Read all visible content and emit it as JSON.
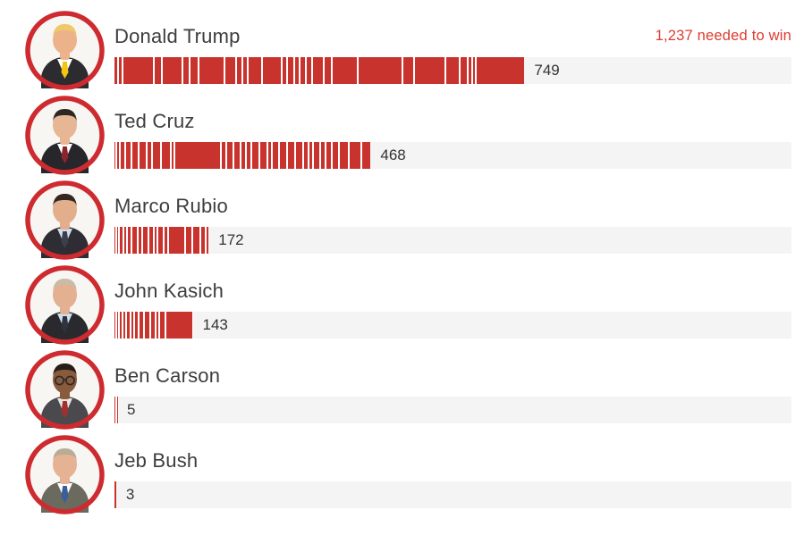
{
  "header": {
    "needed_to_win": "1,237 needed to win"
  },
  "colors": {
    "bar_red": "#c9332d",
    "ring_red": "#ce2b30",
    "needed_red": "#de3b30",
    "track_gray": "#f4f4f4",
    "name_gray": "#3d3d3d",
    "value_gray": "#333333"
  },
  "candidates": [
    {
      "name": "Donald Trump",
      "value": 749,
      "value_label": "749",
      "segments": [
        5,
        7,
        60,
        13,
        40,
        11,
        15,
        50,
        20,
        10,
        8,
        25,
        38,
        7,
        11,
        7,
        10,
        10,
        20,
        13,
        50,
        90,
        20,
        61,
        26,
        13,
        5,
        5,
        99
      ],
      "avatar": {
        "hair": "#f0c869",
        "skin": "#ecb28a",
        "suit": "#2b2b30",
        "shirt": "#ffffff",
        "tie": "#f2c413",
        "glasses": false
      }
    },
    {
      "name": "Ted Cruz",
      "value": 468,
      "value_label": "468",
      "segments": [
        3,
        4,
        8,
        10,
        12,
        15,
        9,
        17,
        18,
        4,
        104,
        8,
        14,
        11,
        9,
        9,
        14,
        15,
        6,
        12,
        14,
        15,
        15,
        9,
        5,
        13,
        9,
        10,
        12,
        20,
        24,
        20
      ],
      "avatar": {
        "hair": "#2e2620",
        "skin": "#e7b694",
        "suit": "#26262b",
        "shirt": "#ffffff",
        "tie": "#8c2430",
        "glasses": false
      }
    },
    {
      "name": "Marco Rubio",
      "value": 172,
      "value_label": "172",
      "segments": [
        2,
        3,
        6,
        5,
        8,
        10,
        7,
        12,
        9,
        6,
        11,
        8,
        40,
        14,
        16,
        10,
        5
      ],
      "avatar": {
        "hair": "#33271f",
        "skin": "#e2ae8c",
        "suit": "#2d2d33",
        "shirt": "#cfe0ec",
        "tie": "#3a3f4a",
        "glasses": false
      }
    },
    {
      "name": "John Kasich",
      "value": 143,
      "value_label": "143",
      "segments": [
        2,
        3,
        4,
        5,
        6,
        4,
        7,
        9,
        12,
        8,
        6,
        11,
        66
      ],
      "avatar": {
        "hair": "#c9bba6",
        "skin": "#e3b091",
        "suit": "#2a2a2e",
        "shirt": "#cfe0ec",
        "tie": "#2f3340",
        "glasses": false
      }
    },
    {
      "name": "Ben Carson",
      "value": 5,
      "value_label": "5",
      "segments": [
        3,
        2
      ],
      "avatar": {
        "hair": "#241c16",
        "skin": "#8a5a3c",
        "suit": "#4a4a4e",
        "shirt": "#e8e4de",
        "tie": "#a03030",
        "glasses": true
      }
    },
    {
      "name": "Jeb Bush",
      "value": 3,
      "value_label": "3",
      "segments": [
        3
      ],
      "avatar": {
        "hair": "#b9ac97",
        "skin": "#e5b294",
        "suit": "#6b6a5e",
        "shirt": "#ffffff",
        "tie": "#3a5d9c",
        "glasses": false
      }
    }
  ],
  "chart_data": {
    "type": "bar",
    "categories": [
      "Donald Trump",
      "Ted Cruz",
      "Marco Rubio",
      "John Kasich",
      "Ben Carson",
      "Jeb Bush"
    ],
    "values": [
      749,
      468,
      172,
      143,
      5,
      3
    ],
    "title": "",
    "xlabel": "",
    "ylabel": "",
    "annotation": "1,237 needed to win",
    "xlim": [
      0,
      1237
    ],
    "orientation": "horizontal",
    "grid": false,
    "legend": "none",
    "bar_color": "#c9332d",
    "note": "bars are drawn as barcode-style segments (one segment per contest), segment arrays per candidate in candidates[].segments"
  }
}
